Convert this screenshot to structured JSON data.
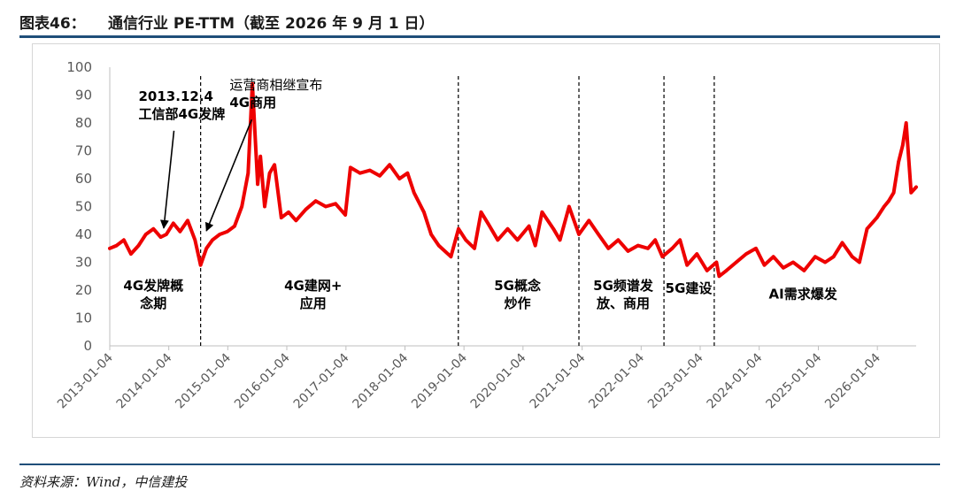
{
  "header": {
    "figure_label": "图表46：",
    "title": "通信行业 PE-TTM（截至 2026 年 9 月 1 日）"
  },
  "source": "资料来源：Wind，中信建投",
  "chart_data": {
    "type": "line",
    "title": "",
    "xlabel": "",
    "ylabel": "",
    "ylim": [
      0,
      100
    ],
    "yticks": [
      0,
      10,
      20,
      30,
      40,
      50,
      60,
      70,
      80,
      90,
      100
    ],
    "xlim": [
      "2013-01-04",
      "2026-09-01"
    ],
    "xticks": [
      "2013-01-04",
      "2014-01-04",
      "2015-01-04",
      "2016-01-04",
      "2017-01-04",
      "2018-01-04",
      "2019-01-04",
      "2020-01-04",
      "2021-01-04",
      "2022-01-04",
      "2023-01-04",
      "2024-01-04",
      "2025-01-04",
      "2026-01-04"
    ],
    "grid": false,
    "legend": "none",
    "line_color": "#ee0000",
    "series": [
      {
        "x": [
          "2013-01-04",
          "2013-02-15",
          "2013-04-01",
          "2013-05-15",
          "2013-07-01",
          "2013-08-15",
          "2013-10-01",
          "2013-11-15",
          "2013-12-20",
          "2014-02-01",
          "2014-03-15",
          "2014-05-01",
          "2014-06-15",
          "2014-07-20",
          "2014-08-25",
          "2014-10-01",
          "2014-11-15",
          "2015-01-01",
          "2015-02-15",
          "2015-04-01",
          "2015-05-10",
          "2015-06-05",
          "2015-07-08",
          "2015-07-25",
          "2015-08-20",
          "2015-09-20",
          "2015-10-20",
          "2015-12-01",
          "2016-01-15",
          "2016-03-01",
          "2016-05-01",
          "2016-07-01",
          "2016-09-01",
          "2016-11-01",
          "2016-12-31",
          "2017-02-01",
          "2017-04-01",
          "2017-06-01",
          "2017-08-01",
          "2017-10-01",
          "2017-12-01",
          "2018-01-20",
          "2018-03-01",
          "2018-05-01",
          "2018-06-15",
          "2018-08-01",
          "2018-10-15",
          "2018-12-01",
          "2019-01-15",
          "2019-03-10",
          "2019-04-20",
          "2019-06-01",
          "2019-08-01",
          "2019-10-01",
          "2019-12-01",
          "2020-02-10",
          "2020-03-20",
          "2020-05-01",
          "2020-07-10",
          "2020-08-20",
          "2020-10-15",
          "2020-12-15",
          "2021-02-15",
          "2021-04-15",
          "2021-06-15",
          "2021-08-15",
          "2021-10-15",
          "2021-12-15",
          "2022-02-15",
          "2022-04-01",
          "2022-05-15",
          "2022-07-15",
          "2022-09-01",
          "2022-10-15",
          "2022-12-15",
          "2023-02-15",
          "2023-04-15",
          "2023-05-01",
          "2023-06-15",
          "2023-08-15",
          "2023-10-15",
          "2023-12-15",
          "2024-02-05",
          "2024-04-01",
          "2024-06-01",
          "2024-08-01",
          "2024-10-08",
          "2024-12-15",
          "2025-02-15",
          "2025-04-08",
          "2025-06-01",
          "2025-08-01",
          "2025-09-15",
          "2025-11-01",
          "2026-01-01",
          "2026-02-15",
          "2026-03-15",
          "2026-04-15",
          "2026-05-15",
          "2026-06-10",
          "2026-07-01",
          "2026-08-01",
          "2026-09-01"
        ],
        "y": [
          35,
          36,
          38,
          33,
          36,
          40,
          42,
          39,
          40,
          44,
          41,
          45,
          38,
          29,
          35,
          38,
          40,
          41,
          43,
          50,
          62,
          94,
          58,
          68,
          50,
          62,
          65,
          46,
          48,
          45,
          49,
          52,
          50,
          51,
          47,
          64,
          62,
          63,
          61,
          65,
          60,
          62,
          55,
          48,
          40,
          36,
          32,
          42,
          38,
          35,
          48,
          44,
          38,
          42,
          38,
          43,
          36,
          48,
          42,
          38,
          50,
          40,
          45,
          40,
          35,
          38,
          34,
          36,
          35,
          38,
          32,
          35,
          38,
          29,
          33,
          27,
          30,
          25,
          27,
          30,
          33,
          35,
          29,
          32,
          28,
          30,
          27,
          32,
          30,
          32,
          37,
          32,
          30,
          42,
          46,
          50,
          52,
          55,
          66,
          72,
          80,
          55,
          57
        ]
      }
    ],
    "phase_dividers": [
      "2014-07-20",
      "2018-11-30",
      "2020-12-15",
      "2022-05-25",
      "2023-04-01"
    ],
    "phases": [
      {
        "x": "2013-10-01",
        "y": 20,
        "lines": [
          "4G发牌概",
          "念期"
        ]
      },
      {
        "x": "2016-06-15",
        "y": 20,
        "lines": [
          "4G建网+",
          "应用"
        ]
      },
      {
        "x": "2019-12-01",
        "y": 20,
        "lines": [
          "5G概念",
          "炒作"
        ]
      },
      {
        "x": "2021-09-15",
        "y": 20,
        "lines": [
          "5G频谱发",
          "放、商用"
        ]
      },
      {
        "x": "2022-10-25",
        "y": 19,
        "lines": [
          "5G建设"
        ]
      },
      {
        "x": "2024-10-01",
        "y": 17,
        "lines": [
          "AI需求爆发"
        ]
      }
    ],
    "annotations": [
      {
        "lines": [
          "2013.12.4",
          "工信部4G发牌"
        ],
        "x": "2013-07-01",
        "y": 88,
        "arrow_to": {
          "x": "2013-12-04",
          "y": 41
        }
      },
      {
        "lines": [
          "运营商相继宣布",
          "4G商用"
        ],
        "x": "2015-01-15",
        "y": 92,
        "arrow_to": {
          "x": "2014-08-25",
          "y": 40
        }
      }
    ]
  }
}
